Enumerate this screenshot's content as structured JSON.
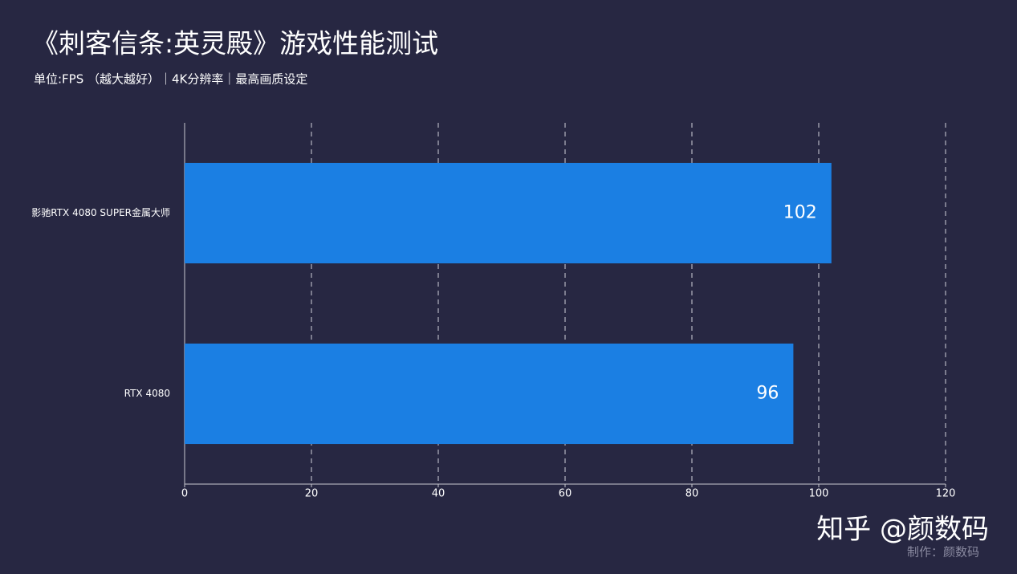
{
  "chart_data": {
    "type": "bar",
    "orientation": "horizontal",
    "title": "《刺客信条:英灵殿》游戏性能测试",
    "subtitle": "单位:FPS （越大越好）｜4K分辨率｜最高画质设定",
    "categories": [
      "影驰RTX 4080 SUPER金属大师",
      "RTX 4080"
    ],
    "values": [
      102,
      96
    ],
    "color": "#1b7fe3",
    "xlim": [
      0,
      120
    ],
    "xticks": [
      0,
      20,
      40,
      60,
      80,
      100,
      120
    ],
    "grid": true,
    "annotations": [
      "知乎 @颜数码",
      "制作：颜数码"
    ]
  }
}
